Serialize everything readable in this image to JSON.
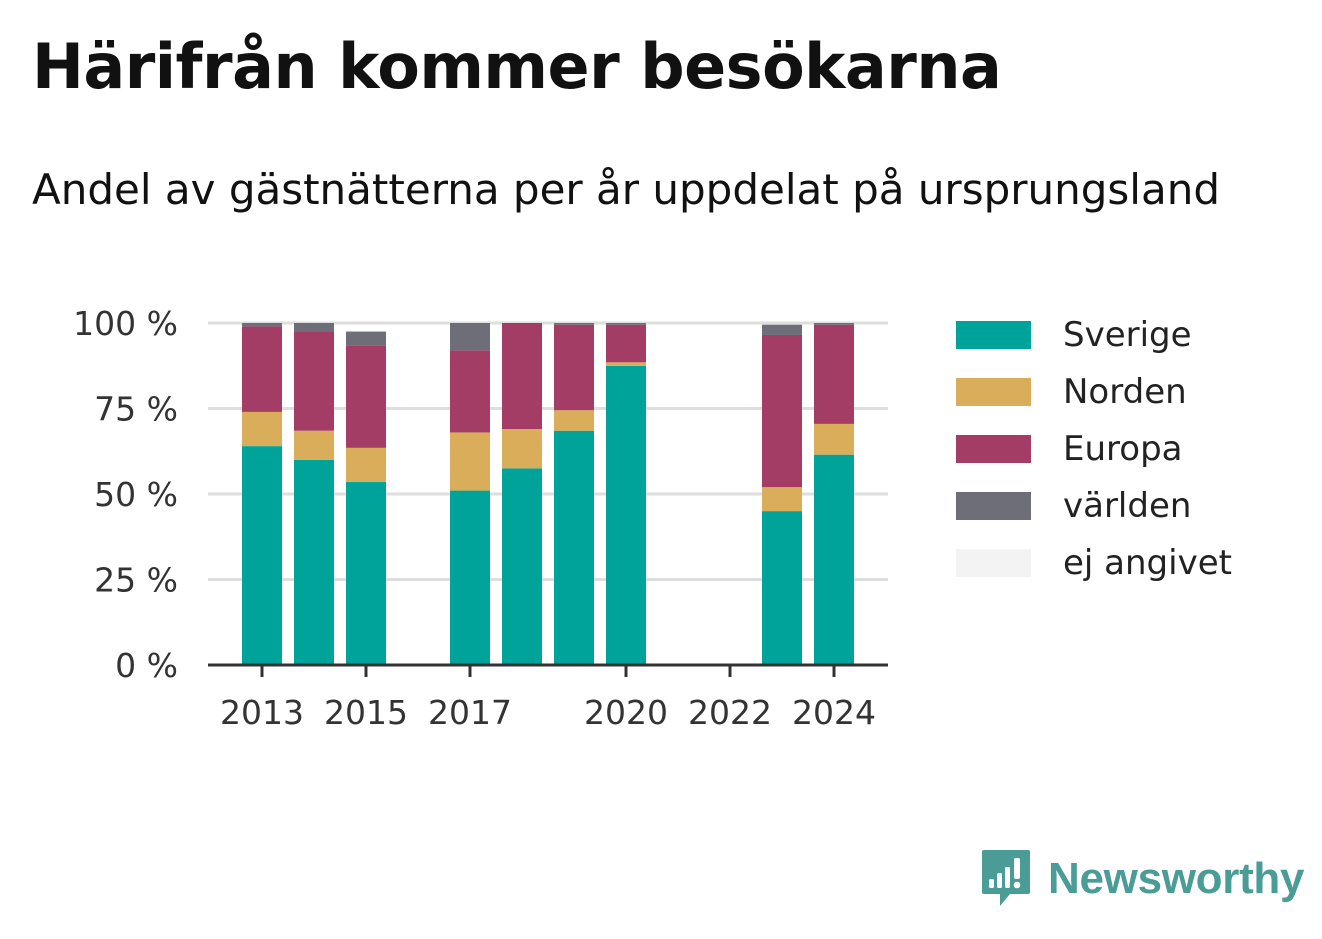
{
  "header": {
    "title": "Härifrån kommer besökarna",
    "subtitle": "Andel av gästnätterna per år uppdelat på ursprungsland"
  },
  "brand": {
    "name": "Newsworthy",
    "icon": "newsworthy-logo-icon",
    "color": "#4a9d96"
  },
  "chart_data": {
    "type": "bar",
    "stacked": true,
    "years": [
      2013,
      2014,
      2015,
      2016,
      2017,
      2018,
      2019,
      2020,
      2021,
      2022,
      2023,
      2024
    ],
    "x_tick_labels": [
      "2013",
      "2015",
      "2017",
      "2020",
      "2022",
      "2024"
    ],
    "y_tick_labels": [
      "0 %",
      "25 %",
      "50 %",
      "75 %",
      "100 %"
    ],
    "ylim": [
      0,
      100
    ],
    "grid": true,
    "legend_position": "right",
    "series": [
      {
        "name": "Sverige",
        "color": "#00a39a",
        "values": [
          64,
          60,
          53.5,
          null,
          51,
          57.5,
          68.5,
          87.5,
          null,
          null,
          45,
          61.5
        ]
      },
      {
        "name": "Norden",
        "color": "#d9ad5a",
        "values": [
          10,
          8.5,
          10,
          null,
          17,
          11.5,
          6,
          1,
          null,
          null,
          7,
          9
        ]
      },
      {
        "name": "Europa",
        "color": "#a33d66",
        "values": [
          25,
          29,
          30,
          null,
          24,
          31,
          25,
          11,
          null,
          null,
          44.5,
          29
        ]
      },
      {
        "name": "världen",
        "color": "#6e6e78",
        "values": [
          1,
          2.5,
          4,
          null,
          8,
          0,
          0.5,
          0.5,
          null,
          null,
          3,
          0.5
        ]
      },
      {
        "name": "ej angivet",
        "color": "#f3f3f3",
        "values": [
          0,
          0,
          0,
          null,
          0,
          0,
          0,
          0,
          null,
          null,
          0,
          0
        ]
      }
    ]
  }
}
